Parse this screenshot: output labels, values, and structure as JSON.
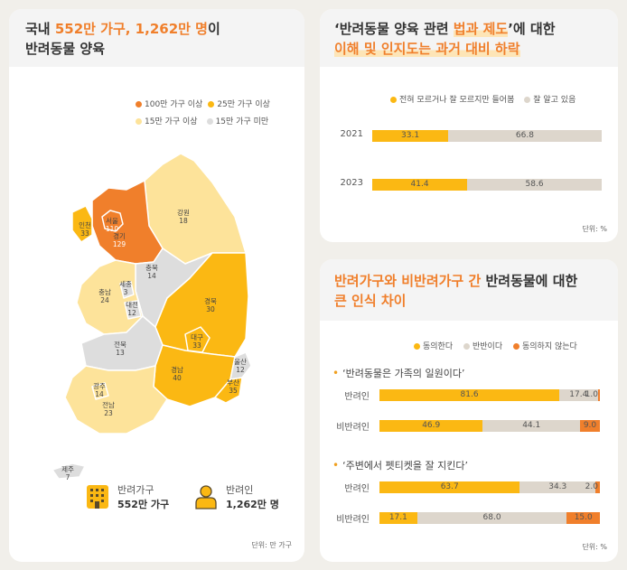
{
  "left": {
    "title_pre": "국내 ",
    "title_highlight": "552만 가구, 1,262만 명",
    "title_post": "이",
    "title_line2": "반려동물 양육",
    "legend": [
      {
        "label": "100만 가구 이상",
        "color": "#f07f2b"
      },
      {
        "label": "25만 가구 이상",
        "color": "#fbb813"
      },
      {
        "label": "15만 가구 이상",
        "color": "#fde39a"
      },
      {
        "label": "15만 가구 미만",
        "color": "#dddddd"
      }
    ],
    "regions": [
      {
        "name": "서울",
        "value": "110"
      },
      {
        "name": "인천",
        "value": "33"
      },
      {
        "name": "경기",
        "value": "129"
      },
      {
        "name": "강원",
        "value": "18"
      },
      {
        "name": "충북",
        "value": "14"
      },
      {
        "name": "세종",
        "value": "3"
      },
      {
        "name": "충남",
        "value": "24"
      },
      {
        "name": "대전",
        "value": "12"
      },
      {
        "name": "경북",
        "value": "30"
      },
      {
        "name": "대구",
        "value": "33"
      },
      {
        "name": "전북",
        "value": "13"
      },
      {
        "name": "울산",
        "value": "12"
      },
      {
        "name": "경남",
        "value": "40"
      },
      {
        "name": "부산",
        "value": "35"
      },
      {
        "name": "광주",
        "value": "14"
      },
      {
        "name": "전남",
        "value": "23"
      },
      {
        "name": "제주",
        "value": "7"
      }
    ],
    "households_label": "반려가구",
    "households_value": "552만 가구",
    "people_label": "반려인",
    "people_value": "1,262만 명",
    "unit": "단위: 만 가구"
  },
  "top_right": {
    "title_q1": "‘반려동물 양육 관련 ",
    "title_q_hl": "법과 제도",
    "title_q2": "’에 대한",
    "title_line2": "이해 및 인지도는 과거 대비 하락",
    "legend": [
      {
        "label": "전혀 모르거나 잘 모르지만 들어봄",
        "color": "#fbb813"
      },
      {
        "label": "잘 알고 있음",
        "color": "#ddd6cc"
      }
    ],
    "unit": "단위: %"
  },
  "bottom_right": {
    "title_hl": "반려가구와 비반려가구 간",
    "title_post": " 반려동물에 대한",
    "title_line2": "큰 인식 차이",
    "legend": [
      {
        "label": "동의한다",
        "color": "#fbb813"
      },
      {
        "label": "반반이다",
        "color": "#ddd6cc"
      },
      {
        "label": "동의하지 않는다",
        "color": "#f07f2b"
      }
    ],
    "q1": "‘반려동물은 가족의 일원이다’",
    "q2": "‘주변에서 펫티켓을 잘 지킨다’",
    "unit": "단위: %"
  },
  "chart_data": [
    {
      "type": "bar",
      "orientation": "horizontal-stacked",
      "categories": [
        "2021",
        "2023"
      ],
      "series": [
        {
          "name": "전혀 모르거나 잘 모르지만 들어봄",
          "values": [
            33.1,
            41.4
          ]
        },
        {
          "name": "잘 알고 있음",
          "values": [
            66.8,
            58.6
          ]
        }
      ],
      "xlim": [
        0,
        100
      ]
    },
    {
      "type": "bar",
      "orientation": "horizontal-stacked",
      "title": "‘반려동물은 가족의 일원이다’",
      "categories": [
        "반려인",
        "비반려인"
      ],
      "series": [
        {
          "name": "동의한다",
          "values": [
            81.6,
            46.9
          ]
        },
        {
          "name": "반반이다",
          "values": [
            17.4,
            44.1
          ]
        },
        {
          "name": "동의하지 않는다",
          "values": [
            1.0,
            9.0
          ]
        }
      ],
      "xlim": [
        0,
        100
      ]
    },
    {
      "type": "bar",
      "orientation": "horizontal-stacked",
      "title": "‘주변에서 펫티켓을 잘 지킨다’",
      "categories": [
        "반려인",
        "비반려인"
      ],
      "series": [
        {
          "name": "동의한다",
          "values": [
            63.7,
            17.1
          ]
        },
        {
          "name": "반반이다",
          "values": [
            34.3,
            68.0
          ]
        },
        {
          "name": "동의하지 않는다",
          "values": [
            2.0,
            15.0
          ]
        }
      ],
      "xlim": [
        0,
        100
      ]
    }
  ]
}
